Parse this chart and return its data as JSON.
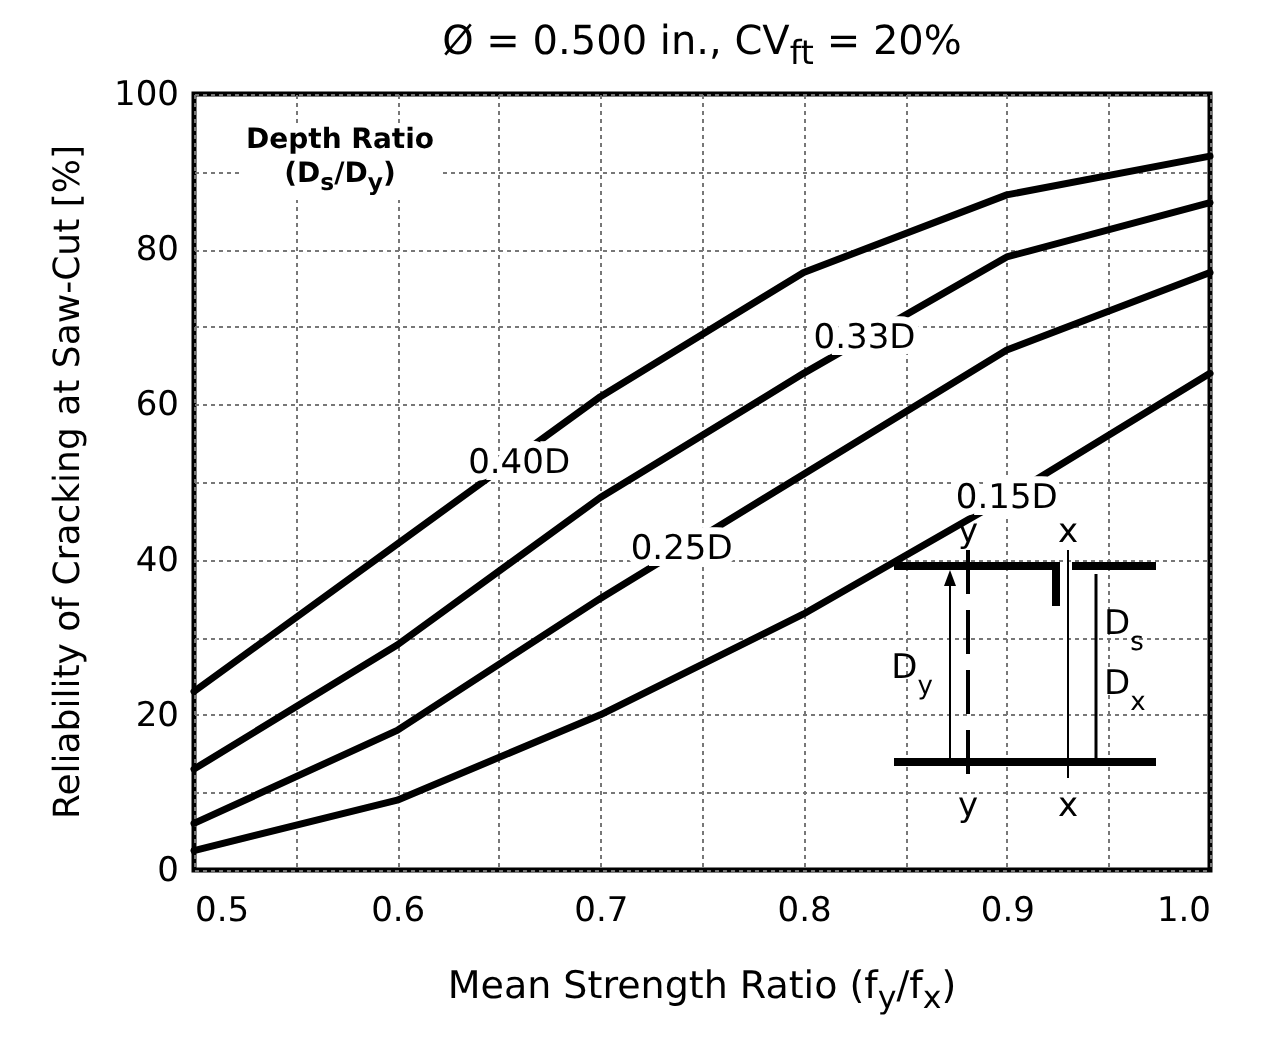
{
  "chart_data": {
    "type": "line",
    "title": "Ø = 0.500 in., CV$_{ft}$ = 20%",
    "xlabel": "Mean Strength Ratio (f$_{y}$/f$_{x}$)",
    "ylabel": "Reliability of Cracking at Saw-Cut [%]",
    "x": [
      0.5,
      0.6,
      0.7,
      0.8,
      0.9,
      1.0
    ],
    "series": [
      {
        "color": "#000000",
        "values": [
          23,
          42,
          61,
          77,
          87,
          92
        ]
      },
      {
        "color": "#000000",
        "values": [
          13,
          29,
          48,
          64,
          79,
          86
        ]
      },
      {
        "color": "#000000",
        "values": [
          6,
          18,
          35,
          51,
          67,
          77
        ]
      },
      {
        "color": "#000000",
        "values": [
          2.5,
          9,
          20,
          33,
          48,
          64
        ]
      }
    ],
    "xlim": [
      0.5,
      1.0
    ],
    "xticks": [
      0.5,
      {
        "value": 0.55,
        "label": null
      },
      0.6,
      {
        "value": 0.65,
        "label": null
      },
      0.7,
      {
        "value": 0.75,
        "label": null
      },
      0.8,
      {
        "value": 0.85,
        "label": null
      },
      0.9,
      {
        "value": 0.95,
        "label": null
      },
      {
        "value": 1.0,
        "label": "1.0"
      }
    ],
    "ylim": [
      0,
      100
    ],
    "yticks": [
      0,
      {
        "value": 10,
        "label": null
      },
      20,
      {
        "value": 30,
        "label": null
      },
      40,
      {
        "value": 50,
        "label": null
      },
      60,
      {
        "value": 70,
        "label": null
      },
      80,
      {
        "value": 90,
        "label": null
      },
      100
    ],
    "grid": true,
    "marker": "none",
    "line_style": "solid",
    "annotations": [
      "Depth Ratio (D$_{s}$/D$_{y}$)",
      {
        "text": "0.40D",
        "x": 0.66,
        "y": 52.4
      },
      {
        "text": "0.33D",
        "x": 0.83,
        "y": 68.5
      },
      {
        "text": "0.25D",
        "x": 0.74,
        "y": 41.4
      },
      {
        "text": "0.15D",
        "x": 0.9,
        "y": 48
      },
      "y",
      "y",
      "x",
      "x",
      "D$_{y}$",
      "D$_{s}$",
      "D$_{x}$"
    ]
  }
}
